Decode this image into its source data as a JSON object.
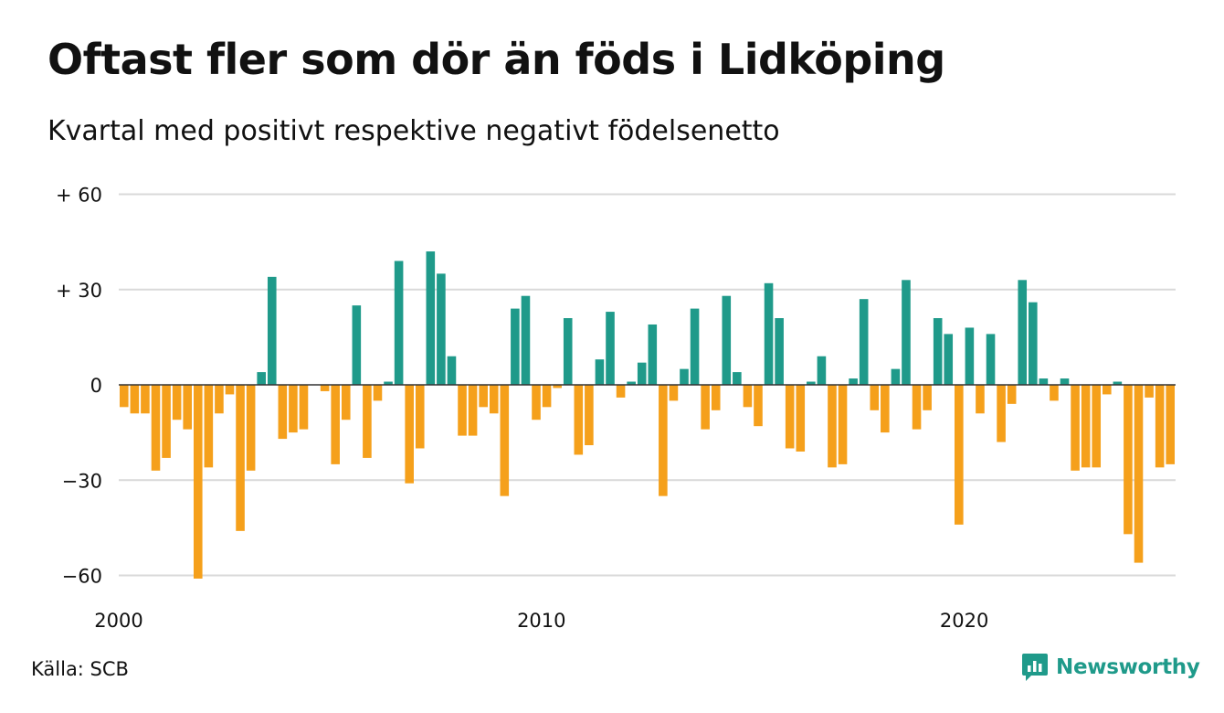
{
  "header": {
    "title": "Oftast fler som dör än föds i Lidköping",
    "subtitle": "Kvartal med positivt respektive negativt födelsenetto"
  },
  "footer": {
    "source": "Källa: SCB",
    "brand": "Newsworthy",
    "brand_icon": "bar-chart-logo-icon"
  },
  "colors": {
    "positive": "#1f9a8a",
    "negative": "#f5a01b",
    "grid": "#d9d9d9",
    "brand": "#1f9a8a"
  },
  "chart_data": {
    "type": "bar",
    "title": "Oftast fler som dör än föds i Lidköping",
    "subtitle": "Kvartal med positivt respektive negativt födelsenetto",
    "x_start": "2000 Q1",
    "x_end": "2024 Q4",
    "x_ticks": [
      {
        "label": "2000",
        "year": 2000
      },
      {
        "label": "2010",
        "year": 2010
      },
      {
        "label": "2020",
        "year": 2020
      }
    ],
    "y_ticks": [
      {
        "label": "+ 60",
        "value": 60
      },
      {
        "label": "+ 30",
        "value": 30
      },
      {
        "label": "0",
        "value": 0
      },
      {
        "label": "−30",
        "value": -30
      },
      {
        "label": "−60",
        "value": -60
      }
    ],
    "ylim": [
      -62,
      60
    ],
    "grid": true,
    "values": [
      -7,
      -9,
      -9,
      -27,
      -23,
      -11,
      -14,
      -61,
      -26,
      -9,
      -3,
      -46,
      -27,
      4,
      34,
      -17,
      -15,
      -14,
      0,
      -2,
      -25,
      -11,
      25,
      -23,
      -5,
      1,
      39,
      -31,
      -20,
      42,
      35,
      9,
      -16,
      -16,
      -7,
      -9,
      -35,
      24,
      28,
      -11,
      -7,
      -1,
      21,
      -22,
      -19,
      8,
      23,
      -4,
      1,
      7,
      19,
      -35,
      -5,
      5,
      24,
      -14,
      -8,
      28,
      4,
      -7,
      -13,
      32,
      21,
      -20,
      -21,
      1,
      9,
      -26,
      -25,
      2,
      27,
      -8,
      -15,
      5,
      33,
      -14,
      -8,
      21,
      16,
      -44,
      18,
      -9,
      16,
      -18,
      -6,
      33,
      26,
      2,
      -5,
      2,
      -27,
      -26,
      -26,
      -3,
      1,
      -47,
      -56,
      -4,
      -26,
      -25
    ]
  }
}
